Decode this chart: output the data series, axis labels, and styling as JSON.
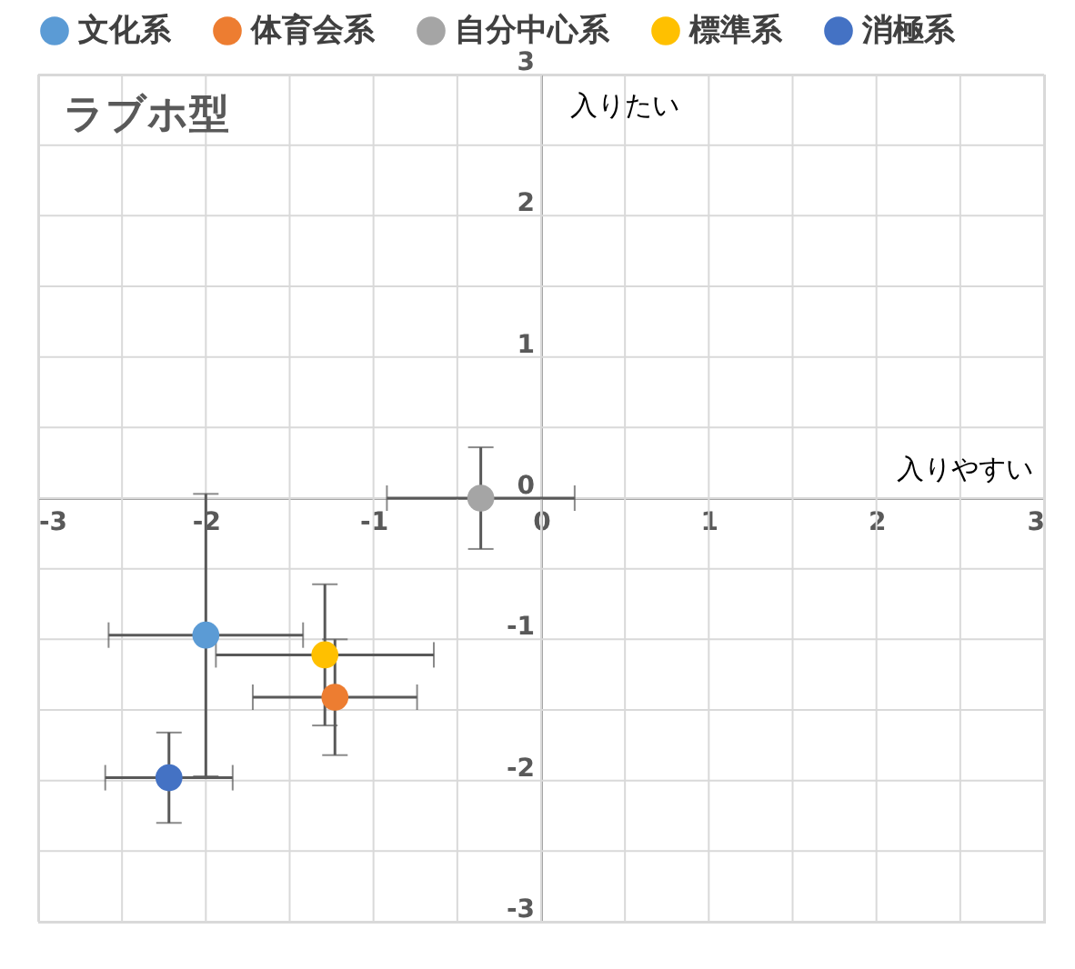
{
  "chart_data": {
    "type": "scatter",
    "title": "ラブホ型",
    "xlabel": "入りやすい",
    "ylabel": "入りたい",
    "xlim": [
      -3,
      3
    ],
    "ylim": [
      -3,
      3
    ],
    "xticks": [
      -3,
      {
        "value": -2.5,
        "label": null
      },
      -2,
      {
        "value": -1.5,
        "label": null
      },
      -1,
      {
        "value": -0.5,
        "label": null
      },
      0,
      {
        "value": 0.5,
        "label": null
      },
      1,
      {
        "value": 1.5,
        "label": null
      },
      2,
      {
        "value": 2.5,
        "label": null
      },
      3
    ],
    "yticks": [
      -3,
      {
        "value": -2.5,
        "label": null
      },
      -2,
      {
        "value": -1.5,
        "label": null
      },
      -1,
      {
        "value": -0.5,
        "label": null
      },
      0,
      {
        "value": 0.5,
        "label": null
      },
      1,
      {
        "value": 1.5,
        "label": null
      },
      2,
      {
        "value": 2.5,
        "label": null
      },
      3
    ],
    "grid": true,
    "legend": "top",
    "marker": "circle",
    "series": [
      {
        "name": "文化系",
        "color": "#5b9bd5",
        "x": [
          -2.0
        ],
        "values": [
          -0.97
        ],
        "errors": [
          1.0
        ],
        "xerrors": [
          0.58
        ]
      },
      {
        "name": "体育会系",
        "color": "#ed7d31",
        "x": [
          -1.23
        ],
        "values": [
          -1.41
        ],
        "errors": [
          0.41
        ],
        "xerrors": [
          0.49
        ]
      },
      {
        "name": "自分中心系",
        "color": "#a5a5a5",
        "x": [
          -0.36
        ],
        "values": [
          0.0
        ],
        "errors": [
          0.36
        ],
        "xerrors": [
          0.56
        ]
      },
      {
        "name": "標準系",
        "color": "#ffc000",
        "x": [
          -1.29
        ],
        "values": [
          -1.11
        ],
        "errors": [
          0.5
        ],
        "xerrors": [
          0.65
        ]
      },
      {
        "name": "消極系",
        "color": "#4472c4",
        "x": [
          -2.22
        ],
        "values": [
          -1.98
        ],
        "errors": [
          0.32
        ],
        "xerrors": [
          0.38
        ]
      }
    ]
  }
}
